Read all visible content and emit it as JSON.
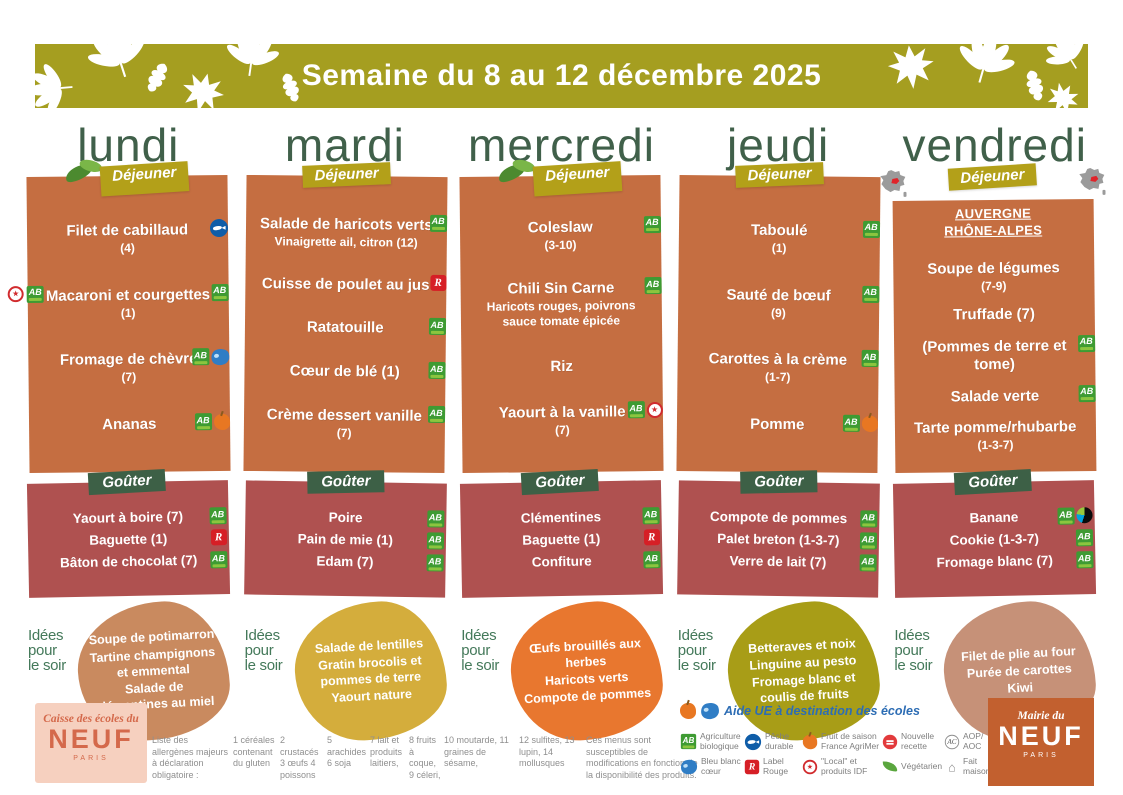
{
  "page": {
    "title": "Semaine du 8 au 12 décembre 2025"
  },
  "colors": {
    "band": "#a59e20",
    "lunch_panel": "#c56e41",
    "snack_panel": "#af5150",
    "dejeuner_badge": "#b3a019",
    "gouter_badge": "#3d6046",
    "day_title": "#40604a",
    "soir_label": "#44795a"
  },
  "labels": {
    "dejeuner": "Déjeuner",
    "gouter": "Goûter",
    "soir": [
      "Idées",
      "pour",
      "le soir"
    ]
  },
  "icon_glyphs": {
    "ab": "AB",
    "lr": "R",
    "aoc": "AC",
    "local": "★",
    "fm": "⌂"
  },
  "days": [
    {
      "name": "lundi",
      "badge_leaves": true,
      "region": null,
      "lunch": [
        {
          "t": "Filet de cabillaud",
          "note": "(4)",
          "icons": [
            "msc"
          ]
        },
        {
          "t": "Macaroni et courgettes",
          "note": "(1)",
          "icons": [
            "ab"
          ],
          "left_icons": [
            "local",
            "ab"
          ]
        },
        {
          "t": "Fromage de chèvre",
          "note": "(7)",
          "icons": [
            "ab",
            "bbc"
          ]
        },
        {
          "t": "Ananas",
          "icons": [
            "ab",
            "fruit"
          ]
        }
      ],
      "snack": [
        {
          "t": "Yaourt à boire (7)",
          "icons": [
            "ab"
          ]
        },
        {
          "t": "Baguette (1)",
          "icons": [
            "lr"
          ]
        },
        {
          "t": "Bâton de chocolat (7)",
          "icons": [
            "ab"
          ]
        }
      ],
      "soir": {
        "color": "#c98a5f",
        "items": [
          "Soupe de potimarron",
          "Tartine champignons et emmental",
          "Salade de clémentines au miel"
        ]
      }
    },
    {
      "name": "mardi",
      "badge_leaves": false,
      "region": null,
      "lunch": [
        {
          "t": "Salade de haricots verts",
          "sub": "Vinaigrette ail, citron (12)",
          "icons": [
            "ab"
          ]
        },
        {
          "t": "Cuisse de poulet au jus",
          "icons": [
            "lr"
          ]
        },
        {
          "t": "Ratatouille",
          "icons": [
            "ab"
          ]
        },
        {
          "t": "Cœur de blé (1)",
          "icons": [
            "ab"
          ]
        },
        {
          "t": "Crème dessert vanille",
          "note": "(7)",
          "icons": [
            "ab"
          ]
        }
      ],
      "snack": [
        {
          "t": "Poire",
          "icons": [
            "ab"
          ]
        },
        {
          "t": "Pain de mie (1)",
          "icons": [
            "ab"
          ]
        },
        {
          "t": "Edam (7)",
          "icons": [
            "ab"
          ]
        }
      ],
      "soir": {
        "color": "#d4ad3c",
        "items": [
          "Salade de lentilles",
          "Gratin brocolis et pommes de terre",
          "Yaourt nature"
        ]
      }
    },
    {
      "name": "mercredi",
      "badge_leaves": true,
      "region": null,
      "lunch": [
        {
          "t": "Coleslaw",
          "note": "(3-10)",
          "icons": [
            "ab"
          ]
        },
        {
          "t": "Chili Sin Carne",
          "sub": "Haricots rouges, poivrons sauce tomate épicée",
          "icons": [
            "ab"
          ]
        },
        {
          "t": "Riz"
        },
        {
          "t": "Yaourt à la vanille",
          "note": "(7)",
          "icons": [
            "ab",
            "local"
          ]
        }
      ],
      "snack": [
        {
          "t": "Clémentines",
          "icons": [
            "ab"
          ]
        },
        {
          "t": "Baguette (1)",
          "icons": [
            "lr"
          ]
        },
        {
          "t": "Confiture",
          "icons": [
            "ab"
          ]
        }
      ],
      "soir": {
        "color": "#e8772f",
        "items": [
          "Œufs brouillés aux herbes",
          "Haricots verts",
          "Compote de pommes"
        ]
      }
    },
    {
      "name": "jeudi",
      "badge_leaves": false,
      "region": null,
      "lunch": [
        {
          "t": "Taboulé",
          "note": "(1)",
          "icons": [
            "ab"
          ]
        },
        {
          "t": "Sauté de bœuf",
          "note": "(9)",
          "icons": [
            "ab"
          ]
        },
        {
          "t": "Carottes à la crème",
          "note": "(1-7)",
          "icons": [
            "ab"
          ]
        },
        {
          "t": "Pomme",
          "icons": [
            "ab",
            "fruit"
          ]
        }
      ],
      "snack": [
        {
          "t": "Compote de pommes",
          "icons": [
            "ab"
          ]
        },
        {
          "t": "Palet breton (1-3-7)",
          "icons": [
            "ab"
          ]
        },
        {
          "t": "Verre de lait (7)",
          "icons": [
            "ab"
          ]
        }
      ],
      "soir": {
        "color": "#a89d17",
        "items": [
          "Betteraves et noix",
          "Linguine au pesto",
          "Fromage blanc et coulis de fruits"
        ]
      }
    },
    {
      "name": "vendredi",
      "badge_leaves": false,
      "region": [
        "AUVERGNE",
        "RHÔNE-ALPES"
      ],
      "lunch": [
        {
          "t": "Soupe de légumes",
          "note": "(7-9)"
        },
        {
          "t": "Truffade (7)"
        },
        {
          "t": "(Pommes de terre et tome)",
          "icons": [
            "ab"
          ]
        },
        {
          "t": "Salade verte",
          "icons": [
            "ab"
          ]
        },
        {
          "t": "Tarte pomme/rhubarbe",
          "note": "(1-3-7)"
        }
      ],
      "snack": [
        {
          "t": "Banane",
          "icons": [
            "ab",
            "ft"
          ]
        },
        {
          "t": "Cookie (1-3-7)",
          "icons": [
            "ab"
          ]
        },
        {
          "t": "Fromage blanc (7)",
          "icons": [
            "ab"
          ]
        }
      ],
      "soir": {
        "color": "#c69178",
        "items": [
          "Filet de plie au four",
          "Purée de carottes",
          "Kiwi"
        ]
      }
    }
  ],
  "footer": {
    "caisse_logo": {
      "top": "Caisse des écoles du",
      "name": "NEUF",
      "city": "PARIS"
    },
    "mairie_logo": {
      "top": "Mairie du",
      "name": "NEUF",
      "city": "PARIS"
    },
    "allergens": {
      "intro": "Liste des allergènes majeurs à déclaration obligatoire :",
      "columns": [
        "1 céréales contenant du gluten",
        "2 crustacés 3 œufs 4 poissons",
        "5 arachides 6 soja",
        "7 lait et produits laitiers,",
        "8 fruits à coque, 9 céleri,",
        "10 moutarde, 11 graines de sésame,",
        "12 sulfites, 13 lupin, 14 mollusques"
      ],
      "disclaimer": "Ces menus sont susceptibles de modifications en fonction de la disponibilité des produits."
    },
    "eu_aid": "Aide UE à destination des écoles",
    "legend": [
      {
        "icon": "ab",
        "label": "Agriculture biologique"
      },
      {
        "icon": "msc",
        "label": "Pêche durable"
      },
      {
        "icon": "fruit",
        "label": "Fruit de saison France AgriMer"
      },
      {
        "icon": "new",
        "label": "Nouvelle recette"
      },
      {
        "icon": "aoc",
        "label": "AOP/ AOC"
      },
      {
        "icon": "bbc",
        "label": "Bleu blanc cœur"
      },
      {
        "icon": "lr",
        "label": "Label Rouge"
      },
      {
        "icon": "local",
        "label": "\"Local\" et produits IDF"
      },
      {
        "icon": "veg",
        "label": "Végétarien"
      },
      {
        "icon": "fm",
        "label": "Fait maison"
      }
    ]
  }
}
